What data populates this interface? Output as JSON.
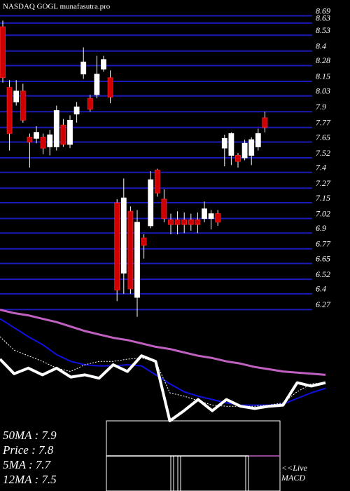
{
  "chart_data": [
    {
      "type": "candlestick",
      "title": "NASDAQ GOGL munafasutra.pro",
      "ylim": [
        6.22,
        8.82
      ],
      "yticks": [
        8.69,
        8.63,
        8.53,
        8.4,
        8.28,
        8.15,
        8.03,
        7.9,
        7.77,
        7.65,
        7.52,
        7.4,
        7.27,
        7.15,
        7.02,
        6.9,
        6.77,
        6.65,
        6.52,
        6.4,
        6.27
      ],
      "grid": true,
      "up_color": "#ffffff",
      "down_color": "#d00000",
      "grid_color": "#1a1ab8",
      "open": [
        8.6,
        8.1,
        7.98,
        8.07,
        7.69,
        7.68,
        7.69,
        7.61,
        7.61,
        7.79,
        7.63,
        7.88,
        8.21,
        8.01,
        8.04,
        8.25,
        8.18,
        7.15,
        6.57,
        7.08,
        6.37,
        6.86,
        6.96,
        7.42,
        7.18,
        7.01,
        7.01,
        7.01,
        7.01,
        7.01,
        7.02,
        7.02,
        7.06,
        7.6,
        7.54,
        7.54,
        7.52,
        7.54,
        7.61,
        7.85
      ],
      "high": [
        8.65,
        8.16,
        8.16,
        8.13,
        7.72,
        7.78,
        7.72,
        7.75,
        7.95,
        7.84,
        7.87,
        7.98,
        8.43,
        8.04,
        8.36,
        8.36,
        8.24,
        7.18,
        7.35,
        7.12,
        7.09,
        6.89,
        7.41,
        7.43,
        7.26,
        7.06,
        7.08,
        7.07,
        7.06,
        7.07,
        7.16,
        7.09,
        7.09,
        7.71,
        7.73,
        7.56,
        7.67,
        7.69,
        7.76,
        7.9
      ],
      "low": [
        8.14,
        7.58,
        7.95,
        7.81,
        7.44,
        7.64,
        7.55,
        7.54,
        7.58,
        7.61,
        7.6,
        7.81,
        8.17,
        7.9,
        8.01,
        8.23,
        7.97,
        6.34,
        6.4,
        6.4,
        6.21,
        6.69,
        6.94,
        7.2,
        6.99,
        6.89,
        6.89,
        6.9,
        6.92,
        6.9,
        6.99,
        6.93,
        6.96,
        7.45,
        7.46,
        7.44,
        7.5,
        7.46,
        7.58,
        7.73
      ],
      "close": [
        8.18,
        7.72,
        8.07,
        7.83,
        7.65,
        7.73,
        7.6,
        7.71,
        7.91,
        7.63,
        7.83,
        7.94,
        8.31,
        7.92,
        8.21,
        8.33,
        8.02,
        6.43,
        7.19,
        6.44,
        6.99,
        6.8,
        7.34,
        7.23,
        7.02,
        6.97,
        6.97,
        6.97,
        6.97,
        6.97,
        7.1,
        7.06,
        6.99,
        7.68,
        7.72,
        7.49,
        7.64,
        7.67,
        7.72,
        7.77
      ]
    },
    {
      "type": "line",
      "ylim": [
        0,
        100
      ],
      "series": [
        {
          "color": "#c060c0",
          "width": 3,
          "values": [
            99,
            96,
            94,
            91,
            88,
            84,
            80,
            77,
            74,
            72,
            69,
            66,
            64,
            61,
            58,
            56,
            53,
            51,
            48,
            46,
            44,
            43,
            42,
            41
          ]
        },
        {
          "color": "#1010e0",
          "width": 2,
          "values": [
            91,
            83,
            75,
            68,
            59,
            53,
            50,
            49,
            49,
            50,
            49,
            41,
            33,
            26,
            22,
            19,
            16,
            14,
            14,
            14,
            15,
            20,
            25,
            29
          ]
        },
        {
          "color": "#ffffff",
          "width": 1,
          "dash": true,
          "values": [
            75,
            63,
            58,
            53,
            47,
            44,
            50,
            53,
            53,
            55,
            56,
            53,
            25,
            22,
            18,
            14,
            13,
            13,
            13,
            14,
            16,
            26,
            33,
            34
          ]
        },
        {
          "color": "#ffffff",
          "width": 4,
          "values": [
            55,
            42,
            47,
            41,
            47,
            39,
            41,
            38,
            50,
            44,
            58,
            53,
            0,
            9,
            19,
            9,
            19,
            13,
            11,
            13,
            14,
            34,
            31,
            34
          ]
        }
      ]
    }
  ],
  "stats": [
    "50MA : 7.9",
    "Price : 7.8",
    "5MA : 7.7",
    "12MA : 7.5"
  ],
  "macd_label": [
    "<<Live",
    "MACD"
  ]
}
